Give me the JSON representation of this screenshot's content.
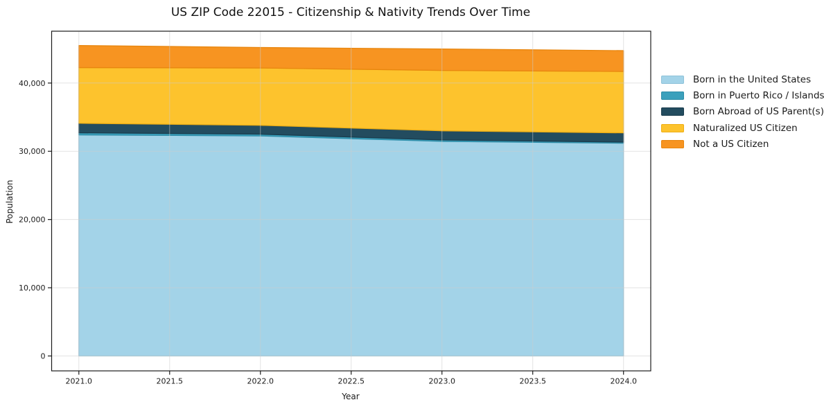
{
  "chart_data": {
    "type": "area",
    "stacked": true,
    "title": "US ZIP Code 22015 - Citizenship & Nativity Trends Over Time",
    "xlabel": "Year",
    "ylabel": "Population",
    "x": [
      2021,
      2022,
      2023,
      2024
    ],
    "x_ticks": [
      2021.0,
      2021.5,
      2022.0,
      2022.5,
      2023.0,
      2023.5,
      2024.0
    ],
    "y_ticks": [
      0,
      10000,
      20000,
      30000,
      40000
    ],
    "xlim": [
      2020.85,
      2024.15
    ],
    "ylim": [
      -2184,
      47600
    ],
    "grid": true,
    "grid_color": "#cccccc",
    "legend_position": "right-outside",
    "series": [
      {
        "name": "Born in the United States",
        "color": "#a3d3e8",
        "edge_color": "#8fc2d9",
        "values": [
          32400,
          32250,
          31450,
          31180
        ]
      },
      {
        "name": "Born in Puerto Rico / Islands",
        "color": "#3ba0bc",
        "edge_color": "#2e8da8",
        "values": [
          310,
          260,
          210,
          170
        ]
      },
      {
        "name": "Born Abroad of US Parent(s)",
        "color": "#234c5f",
        "edge_color": "#1a3c4d",
        "values": [
          1400,
          1300,
          1340,
          1350
        ]
      },
      {
        "name": "Naturalized US Citizen",
        "color": "#fdc32d",
        "edge_color": "#eeae14",
        "values": [
          8150,
          8400,
          8850,
          9000
        ]
      },
      {
        "name": "Not a US Citizen",
        "color": "#f79421",
        "edge_color": "#e8860f",
        "values": [
          3240,
          3000,
          3140,
          3050
        ]
      }
    ]
  }
}
